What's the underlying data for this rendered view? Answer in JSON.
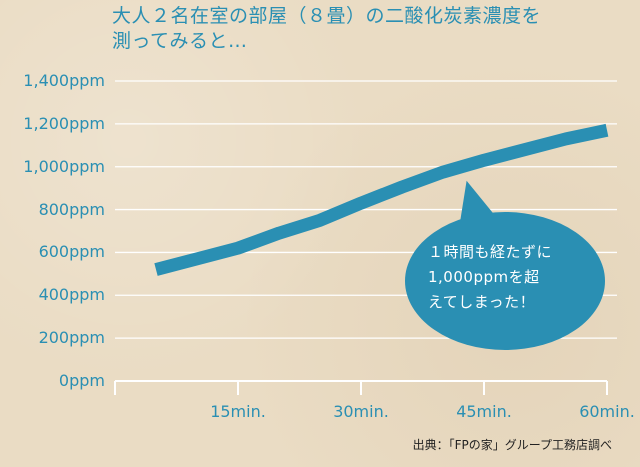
{
  "chart_data": {
    "type": "line",
    "title": "大人２名在室の部屋（８畳）の二酸化炭素濃度を測ってみると…",
    "title_lines": [
      "大人２名在室の部屋（８畳）の二酸化炭素濃度を",
      "測ってみると…"
    ],
    "xlabel": "",
    "ylabel": "",
    "y_tick_labels": [
      "0ppm",
      "200ppm",
      "400ppm",
      "600ppm",
      "800ppm",
      "1,000ppm",
      "1,200ppm",
      "1,400ppm"
    ],
    "y_ticks": [
      0,
      200,
      400,
      600,
      800,
      1000,
      1200,
      1400
    ],
    "ylim": [
      0,
      1400
    ],
    "x_tick_labels": [
      "15min.",
      "30min.",
      "45min.",
      "60min."
    ],
    "x_ticks": [
      15,
      30,
      45,
      60
    ],
    "xlim": [
      0,
      60
    ],
    "grid": true,
    "line_color": "#2a8fb3",
    "series": [
      {
        "x": [
          5,
          10,
          15,
          20,
          25,
          30,
          35,
          40,
          45,
          50,
          55,
          60
        ],
        "values": [
          520,
          570,
          620,
          690,
          750,
          830,
          905,
          975,
          1030,
          1080,
          1130,
          1170
        ]
      }
    ],
    "annotation": {
      "lines": [
        "１時間も経たずに",
        "1,000ppmを超",
        "えてしまった！"
      ],
      "x": 43,
      "y": 1000
    },
    "source": "出典：「FPの家」グループ工務店調べ"
  }
}
